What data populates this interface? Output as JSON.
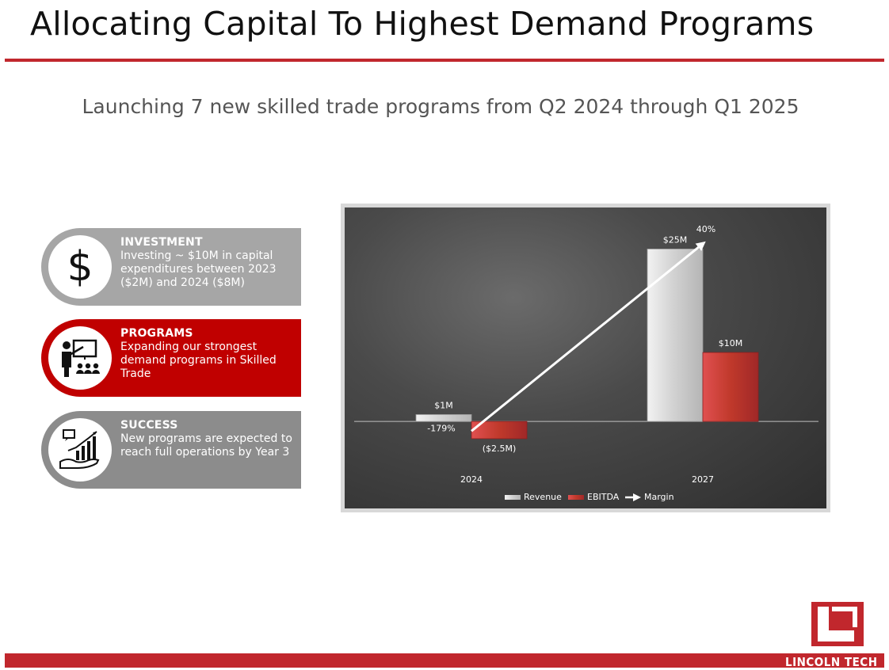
{
  "title": "Allocating Capital To Highest Demand Programs",
  "subtitle": "Launching 7 new skilled trade programs from Q2 2024 through Q1 2025",
  "cards": [
    {
      "heading": "INVESTMENT",
      "body": "Investing ~ $10M in capital expenditures between 2023 ($2M) and 2024 ($8M)",
      "icon": "dollar-icon",
      "color": "#a6a6a6"
    },
    {
      "heading": "PROGRAMS",
      "body": "Expanding our strongest demand programs in Skilled Trade",
      "icon": "instructor-icon",
      "color": "#c00000"
    },
    {
      "heading": "SUCCESS",
      "body": "New programs are expected to reach full operations by Year 3",
      "icon": "growth-chart-icon",
      "color": "#8c8c8c"
    }
  ],
  "logo": {
    "text": "LINCOLN TECH"
  },
  "colors": {
    "brand_red": "#c1272d"
  },
  "chart_data": {
    "type": "bar",
    "categories": [
      "2024",
      "2027"
    ],
    "series": [
      {
        "name": "Revenue",
        "values": [
          1,
          25
        ],
        "labels": [
          "$1M",
          "$25M"
        ],
        "color": "#d9d9d9"
      },
      {
        "name": "EBITDA",
        "values": [
          -2.5,
          10
        ],
        "labels": [
          "($2.5M)",
          "$10M"
        ],
        "color": "#c0392b"
      }
    ],
    "line_series": {
      "name": "Margin",
      "values": [
        -179,
        40
      ],
      "labels": [
        "-179%",
        "40%"
      ],
      "style": "arrow",
      "color": "#ffffff"
    },
    "ylim": [
      -4,
      27
    ],
    "legend": [
      "Revenue",
      "EBITDA",
      "Margin"
    ],
    "legend_position": "bottom",
    "grid": false
  }
}
